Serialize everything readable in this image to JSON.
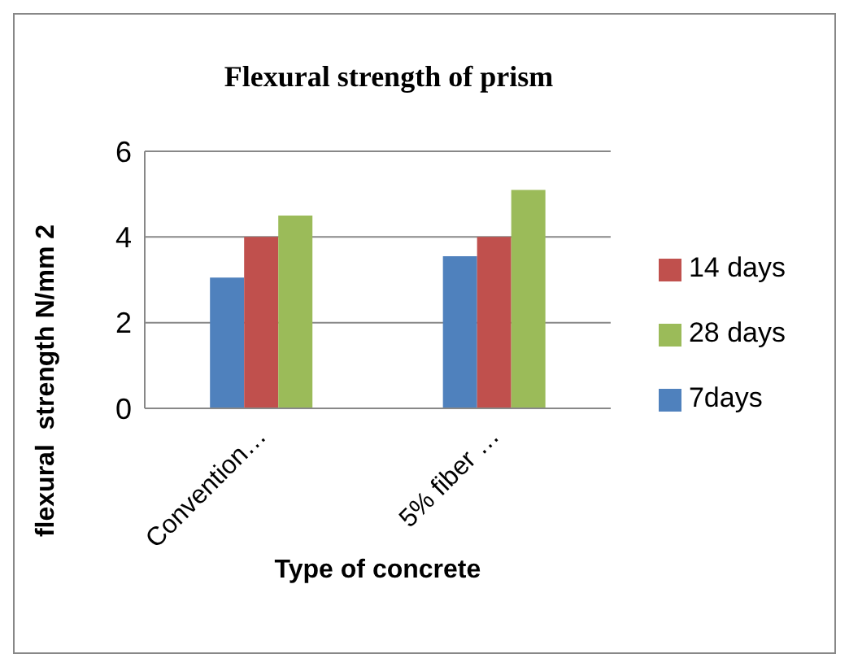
{
  "chart_data": {
    "type": "bar",
    "title": "Flexural strength of prism",
    "xlabel": "Type of concrete",
    "ylabel": "flexural  strength N/mm 2",
    "categories": [
      "Convention…",
      "5% fiber …"
    ],
    "series": [
      {
        "name": "7days",
        "color": "#4f81bd",
        "values": [
          3.05,
          3.55
        ]
      },
      {
        "name": "14 days",
        "color": "#c0504d",
        "values": [
          4.0,
          4.0
        ]
      },
      {
        "name": "28 days",
        "color": "#9bbb59",
        "values": [
          4.5,
          5.1
        ]
      }
    ],
    "ylim": [
      0,
      6
    ],
    "yticks": [
      0,
      2,
      4,
      6
    ],
    "grid": "y",
    "legend": "right"
  }
}
